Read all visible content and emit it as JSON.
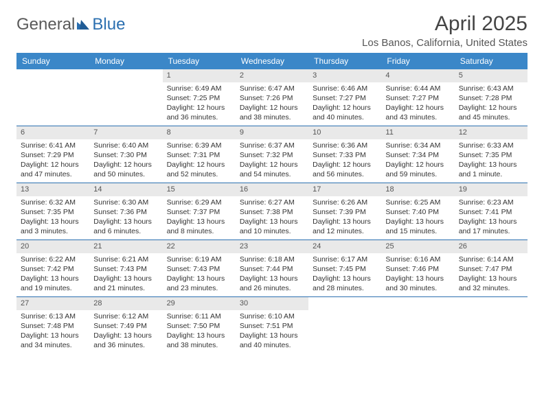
{
  "brand": {
    "general": "General",
    "blue": "Blue"
  },
  "title": "April 2025",
  "location": "Los Banos, California, United States",
  "colors": {
    "header_bg": "#3b87c8",
    "header_text": "#ffffff",
    "week_border": "#2b6fb0",
    "daynum_bg": "#e9e9e9",
    "text": "#333333",
    "logo_gray": "#5a5a5a",
    "logo_blue": "#2b6fb0"
  },
  "day_labels": [
    "Sunday",
    "Monday",
    "Tuesday",
    "Wednesday",
    "Thursday",
    "Friday",
    "Saturday"
  ],
  "weeks": [
    [
      null,
      null,
      {
        "n": "1",
        "sr": "6:49 AM",
        "ss": "7:25 PM",
        "dl": "12 hours and 36 minutes."
      },
      {
        "n": "2",
        "sr": "6:47 AM",
        "ss": "7:26 PM",
        "dl": "12 hours and 38 minutes."
      },
      {
        "n": "3",
        "sr": "6:46 AM",
        "ss": "7:27 PM",
        "dl": "12 hours and 40 minutes."
      },
      {
        "n": "4",
        "sr": "6:44 AM",
        "ss": "7:27 PM",
        "dl": "12 hours and 43 minutes."
      },
      {
        "n": "5",
        "sr": "6:43 AM",
        "ss": "7:28 PM",
        "dl": "12 hours and 45 minutes."
      }
    ],
    [
      {
        "n": "6",
        "sr": "6:41 AM",
        "ss": "7:29 PM",
        "dl": "12 hours and 47 minutes."
      },
      {
        "n": "7",
        "sr": "6:40 AM",
        "ss": "7:30 PM",
        "dl": "12 hours and 50 minutes."
      },
      {
        "n": "8",
        "sr": "6:39 AM",
        "ss": "7:31 PM",
        "dl": "12 hours and 52 minutes."
      },
      {
        "n": "9",
        "sr": "6:37 AM",
        "ss": "7:32 PM",
        "dl": "12 hours and 54 minutes."
      },
      {
        "n": "10",
        "sr": "6:36 AM",
        "ss": "7:33 PM",
        "dl": "12 hours and 56 minutes."
      },
      {
        "n": "11",
        "sr": "6:34 AM",
        "ss": "7:34 PM",
        "dl": "12 hours and 59 minutes."
      },
      {
        "n": "12",
        "sr": "6:33 AM",
        "ss": "7:35 PM",
        "dl": "13 hours and 1 minute."
      }
    ],
    [
      {
        "n": "13",
        "sr": "6:32 AM",
        "ss": "7:35 PM",
        "dl": "13 hours and 3 minutes."
      },
      {
        "n": "14",
        "sr": "6:30 AM",
        "ss": "7:36 PM",
        "dl": "13 hours and 6 minutes."
      },
      {
        "n": "15",
        "sr": "6:29 AM",
        "ss": "7:37 PM",
        "dl": "13 hours and 8 minutes."
      },
      {
        "n": "16",
        "sr": "6:27 AM",
        "ss": "7:38 PM",
        "dl": "13 hours and 10 minutes."
      },
      {
        "n": "17",
        "sr": "6:26 AM",
        "ss": "7:39 PM",
        "dl": "13 hours and 12 minutes."
      },
      {
        "n": "18",
        "sr": "6:25 AM",
        "ss": "7:40 PM",
        "dl": "13 hours and 15 minutes."
      },
      {
        "n": "19",
        "sr": "6:23 AM",
        "ss": "7:41 PM",
        "dl": "13 hours and 17 minutes."
      }
    ],
    [
      {
        "n": "20",
        "sr": "6:22 AM",
        "ss": "7:42 PM",
        "dl": "13 hours and 19 minutes."
      },
      {
        "n": "21",
        "sr": "6:21 AM",
        "ss": "7:43 PM",
        "dl": "13 hours and 21 minutes."
      },
      {
        "n": "22",
        "sr": "6:19 AM",
        "ss": "7:43 PM",
        "dl": "13 hours and 23 minutes."
      },
      {
        "n": "23",
        "sr": "6:18 AM",
        "ss": "7:44 PM",
        "dl": "13 hours and 26 minutes."
      },
      {
        "n": "24",
        "sr": "6:17 AM",
        "ss": "7:45 PM",
        "dl": "13 hours and 28 minutes."
      },
      {
        "n": "25",
        "sr": "6:16 AM",
        "ss": "7:46 PM",
        "dl": "13 hours and 30 minutes."
      },
      {
        "n": "26",
        "sr": "6:14 AM",
        "ss": "7:47 PM",
        "dl": "13 hours and 32 minutes."
      }
    ],
    [
      {
        "n": "27",
        "sr": "6:13 AM",
        "ss": "7:48 PM",
        "dl": "13 hours and 34 minutes."
      },
      {
        "n": "28",
        "sr": "6:12 AM",
        "ss": "7:49 PM",
        "dl": "13 hours and 36 minutes."
      },
      {
        "n": "29",
        "sr": "6:11 AM",
        "ss": "7:50 PM",
        "dl": "13 hours and 38 minutes."
      },
      {
        "n": "30",
        "sr": "6:10 AM",
        "ss": "7:51 PM",
        "dl": "13 hours and 40 minutes."
      },
      null,
      null,
      null
    ]
  ],
  "labels": {
    "sunrise": "Sunrise: ",
    "sunset": "Sunset: ",
    "daylight": "Daylight: "
  }
}
